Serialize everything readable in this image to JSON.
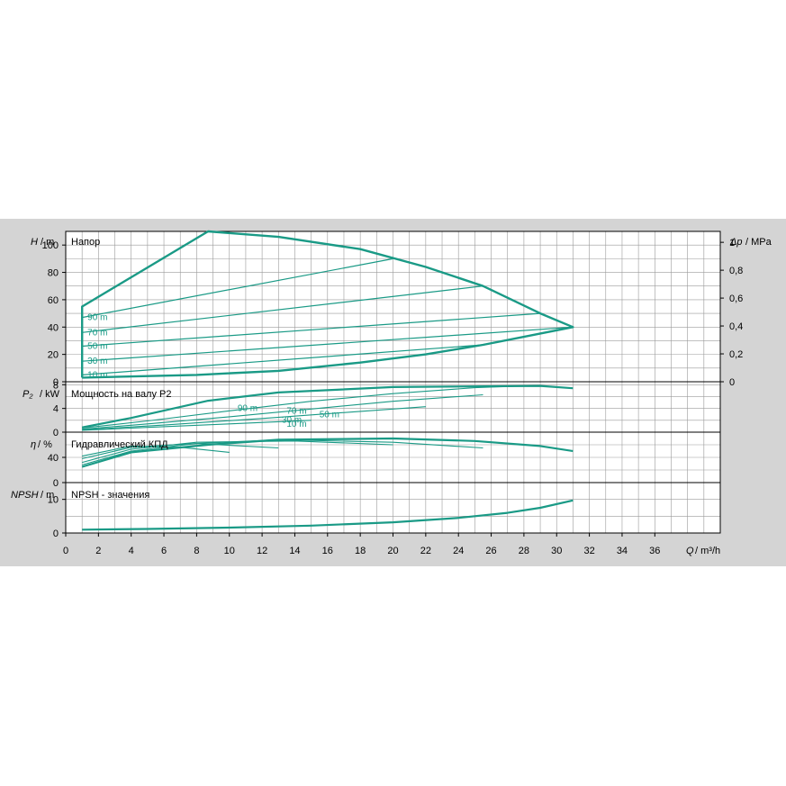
{
  "chart_data": {
    "type": "line",
    "colors": {
      "curve": "#1a9a86",
      "grid": "#9a9a9a",
      "plot_bg": "#ffffff",
      "panel_bg": "#d4d4d4",
      "text": "#000000"
    },
    "x_axis": {
      "label_var": "Q",
      "label_unit": "/ m³/h",
      "range": [
        0,
        40
      ],
      "ticks": [
        "0",
        "2",
        "4",
        "6",
        "8",
        "10",
        "12",
        "14",
        "16",
        "18",
        "20",
        "22",
        "24",
        "26",
        "28",
        "30",
        "32",
        "34",
        "36"
      ]
    },
    "panels": {
      "head": {
        "title": "Напор",
        "ylabel_var": "H",
        "ylabel_unit": "/ m",
        "ylim": [
          0,
          110
        ],
        "yticks": [
          "0",
          "20",
          "40",
          "60",
          "80",
          "100"
        ],
        "right_axis": {
          "label_var": "Δp",
          "label_unit": "/ MPa",
          "ticks": [
            "0",
            "0,2",
            "0,4",
            "0,6",
            "0,8",
            "1"
          ]
        },
        "envelope": {
          "x": [
            1,
            1,
            8.7,
            13,
            18,
            22,
            25.5,
            29,
            31,
            25.5,
            22,
            18,
            13,
            8,
            1
          ],
          "y": [
            3,
            55,
            110,
            106,
            97,
            84,
            70,
            50,
            40,
            27,
            20,
            14,
            8,
            5,
            3
          ]
        },
        "curves": [
          {
            "label": "90 m",
            "x": [
              1,
              20
            ],
            "y": [
              47,
              90
            ]
          },
          {
            "label": "70 m",
            "x": [
              1,
              25.5
            ],
            "y": [
              36,
              70
            ]
          },
          {
            "label": "50 m",
            "x": [
              1,
              29
            ],
            "y": [
              26,
              50
            ]
          },
          {
            "label": "30 m",
            "x": [
              1,
              31
            ],
            "y": [
              15,
              40
            ]
          },
          {
            "label": "10 m",
            "x": [
              1,
              25.5
            ],
            "y": [
              5,
              27
            ]
          }
        ]
      },
      "power": {
        "title": "Мощность на валу P2",
        "ylabel_var": "P₂",
        "ylabel_unit": "/ kW",
        "ylim": [
          0,
          8.5
        ],
        "yticks": [
          "0",
          "4",
          "8"
        ],
        "curves": [
          {
            "label": "90 m",
            "x": [
              1,
              4,
              8.7,
              13,
              20,
              29,
              31
            ],
            "y": [
              0.8,
              2.4,
              5.3,
              6.7,
              7.6,
              7.8,
              7.4
            ]
          },
          {
            "label": "70 m",
            "x": [
              1,
              5,
              10,
              15,
              20,
              25,
              29
            ],
            "y": [
              0.7,
              1.9,
              3.6,
              5.2,
              6.5,
              7.5,
              7.9
            ]
          },
          {
            "label": "50 m",
            "x": [
              1,
              5,
              10,
              15,
              20,
              25.5
            ],
            "y": [
              0.5,
              1.4,
              2.6,
              3.9,
              5.2,
              6.3
            ]
          },
          {
            "label": "30 m",
            "x": [
              1,
              6,
              12,
              18,
              22
            ],
            "y": [
              0.4,
              1.2,
              2.3,
              3.5,
              4.3
            ]
          },
          {
            "label": "10 m",
            "x": [
              1,
              5,
              10,
              15
            ],
            "y": [
              0.3,
              0.8,
              1.4,
              2.0
            ]
          }
        ]
      },
      "efficiency": {
        "title": "Гидравлический КПД",
        "ylabel_var": "η",
        "ylabel_unit": "/ %",
        "ylim": [
          0,
          80
        ],
        "yticks": [
          "0",
          "40"
        ],
        "curves": [
          {
            "label": "90 m",
            "x": [
              1,
              4,
              8.7,
              13,
              20,
              25,
              29,
              31
            ],
            "y": [
              25,
              48,
              60,
              68,
              70,
              66,
              58,
              50
            ]
          },
          {
            "label": "70 m",
            "x": [
              1,
              4,
              8,
              13,
              20,
              25.5
            ],
            "y": [
              28,
              50,
              62,
              68,
              64,
              55
            ]
          },
          {
            "label": "50 m",
            "x": [
              1,
              4,
              8,
              14,
              20
            ],
            "y": [
              32,
              53,
              64,
              66,
              60
            ]
          },
          {
            "label": "30 m",
            "x": [
              1,
              4,
              8,
              13
            ],
            "y": [
              38,
              56,
              62,
              55
            ]
          },
          {
            "label": "10 m",
            "x": [
              1,
              4,
              7,
              10
            ],
            "y": [
              42,
              58,
              56,
              48
            ]
          }
        ]
      },
      "npsh": {
        "title": "NPSH - значения",
        "ylabel_var": "NPSH",
        "ylabel_unit": "/ m",
        "ylim": [
          0,
          15
        ],
        "yticks": [
          "0",
          "10"
        ],
        "curves": [
          {
            "label": "NPSH",
            "x": [
              1,
              5,
              10,
              15,
              20,
              24,
              27,
              29,
              31
            ],
            "y": [
              1.0,
              1.2,
              1.6,
              2.2,
              3.2,
              4.5,
              6.0,
              7.5,
              9.7
            ]
          }
        ]
      }
    }
  }
}
